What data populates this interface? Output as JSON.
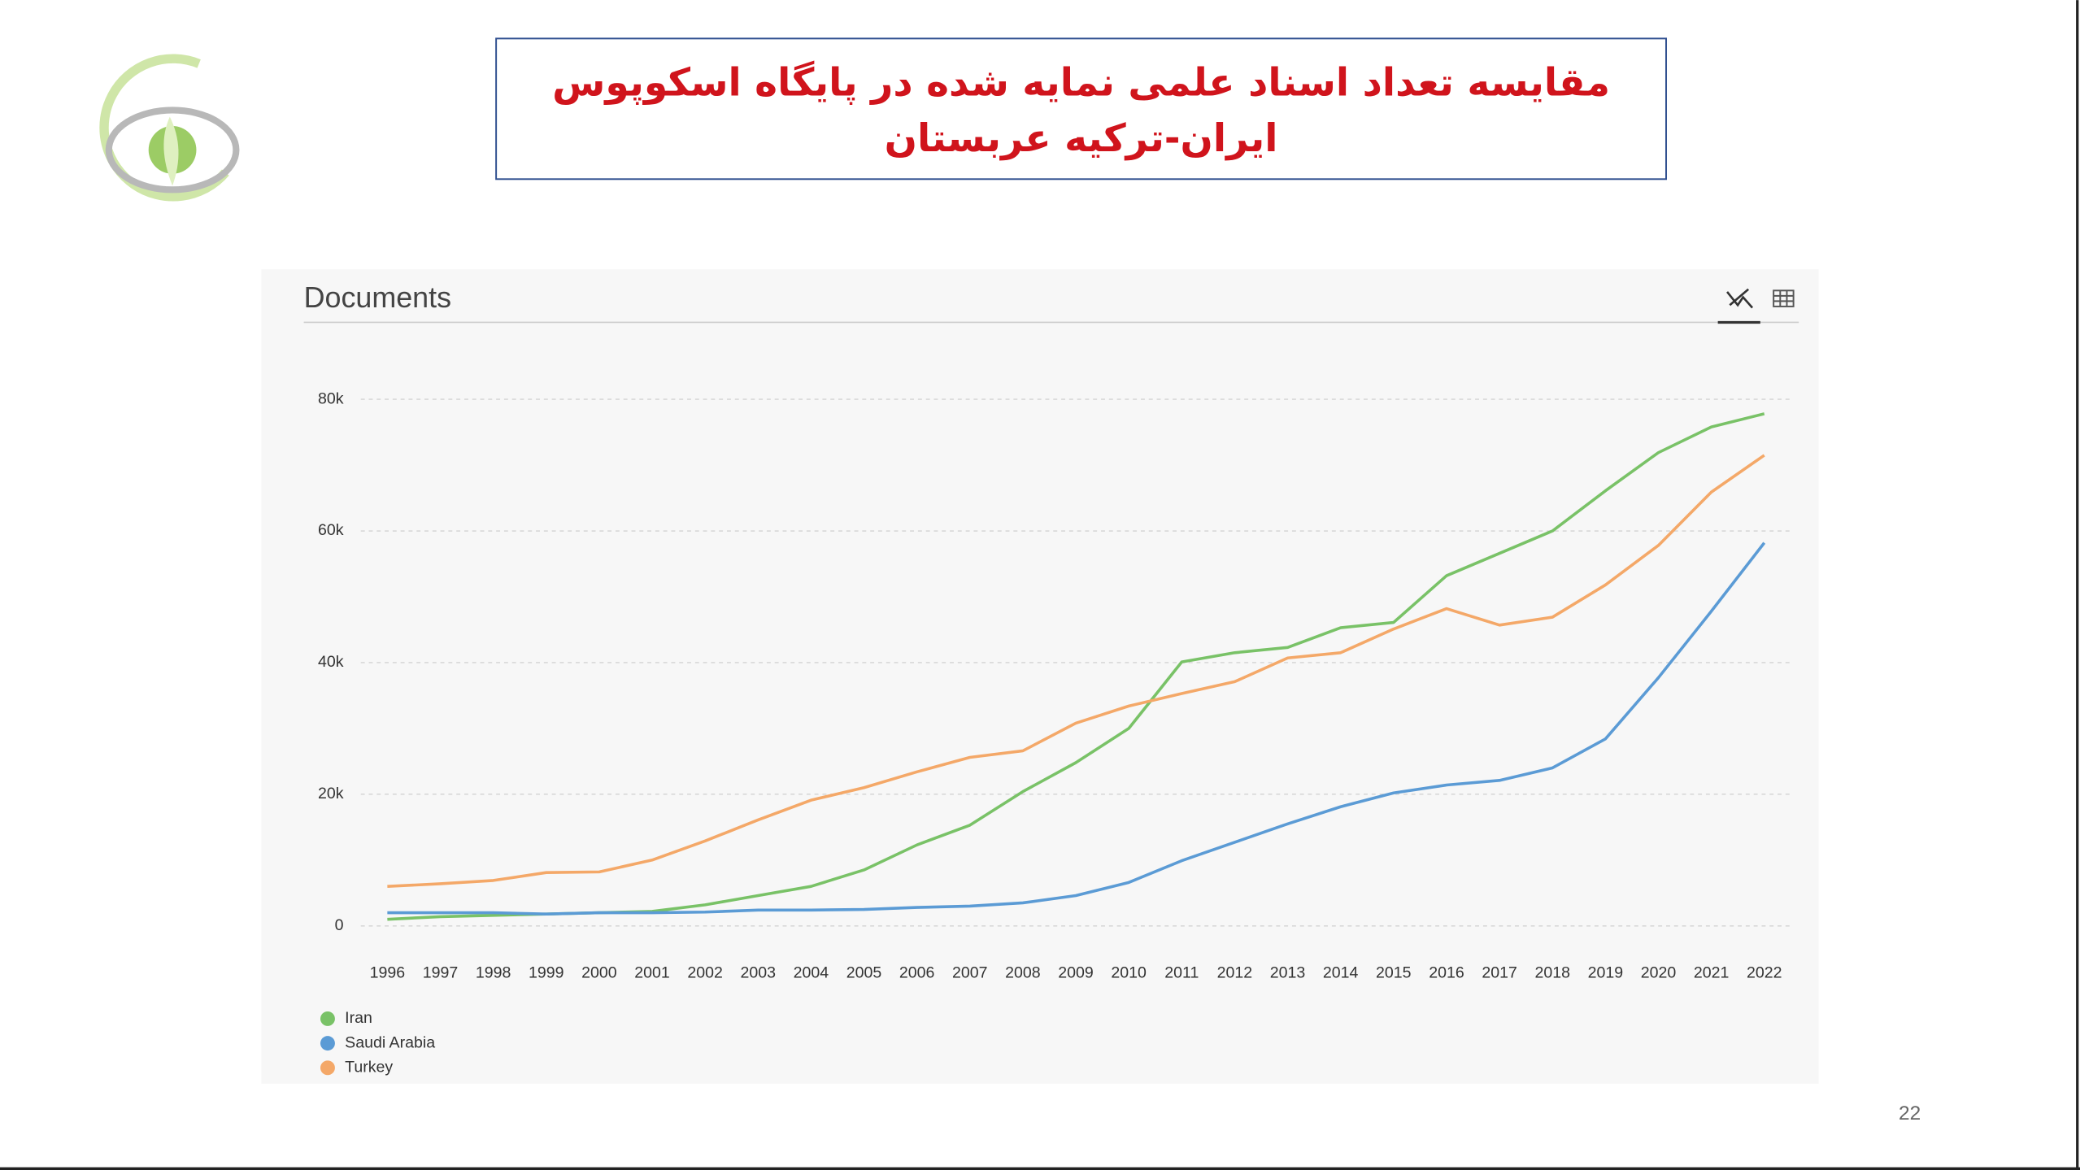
{
  "slide": {
    "title_lines": [
      "مقایسه تعداد اسناد علمی نمایه شده در پایگاه اسکوپوس",
      "ایران-ترکیه عربستان"
    ],
    "page_number": "22"
  },
  "chart_data": {
    "type": "line",
    "title": "Documents",
    "categories": [
      "1996",
      "1997",
      "1998",
      "1999",
      "2000",
      "2001",
      "2002",
      "2003",
      "2004",
      "2005",
      "2006",
      "2007",
      "2008",
      "2009",
      "2010",
      "2011",
      "2012",
      "2013",
      "2014",
      "2015",
      "2016",
      "2017",
      "2018",
      "2019",
      "2020",
      "2021",
      "2022"
    ],
    "series": [
      {
        "name": "Iran",
        "color": "#79c267",
        "values": [
          1000,
          1400,
          1600,
          1800,
          2000,
          2200,
          3200,
          4600,
          6000,
          8500,
          12300,
          15300,
          20400,
          24800,
          30000,
          40100,
          41500,
          42300,
          45300,
          46100,
          53200,
          56600,
          60000,
          66100,
          71900,
          75800,
          77800
        ]
      },
      {
        "name": "Saudi Arabia",
        "color": "#5b9bd5",
        "values": [
          2000,
          2000,
          2000,
          1800,
          2000,
          2000,
          2100,
          2400,
          2400,
          2500,
          2800,
          3000,
          3500,
          4600,
          6600,
          9900,
          12700,
          15500,
          18100,
          20200,
          21400,
          22100,
          24000,
          28400,
          37700,
          47800,
          58200
        ]
      },
      {
        "name": "Turkey",
        "color": "#f4a868",
        "values": [
          6000,
          6400,
          6900,
          8100,
          8200,
          10000,
          12900,
          16100,
          19100,
          21000,
          23400,
          25600,
          26600,
          30800,
          33400,
          35300,
          37100,
          40700,
          41500,
          45100,
          48200,
          45700,
          46900,
          51800,
          57800,
          65900,
          71500
        ]
      }
    ],
    "ylim": [
      0,
      80000
    ],
    "yticks": [
      0,
      {
        "value": 20000,
        "label": "20k"
      },
      {
        "value": 40000,
        "label": "40k"
      },
      {
        "value": 60000,
        "label": "60k"
      },
      {
        "value": 80000,
        "label": "80k"
      }
    ],
    "grid": true,
    "legend": "bottom-left"
  }
}
